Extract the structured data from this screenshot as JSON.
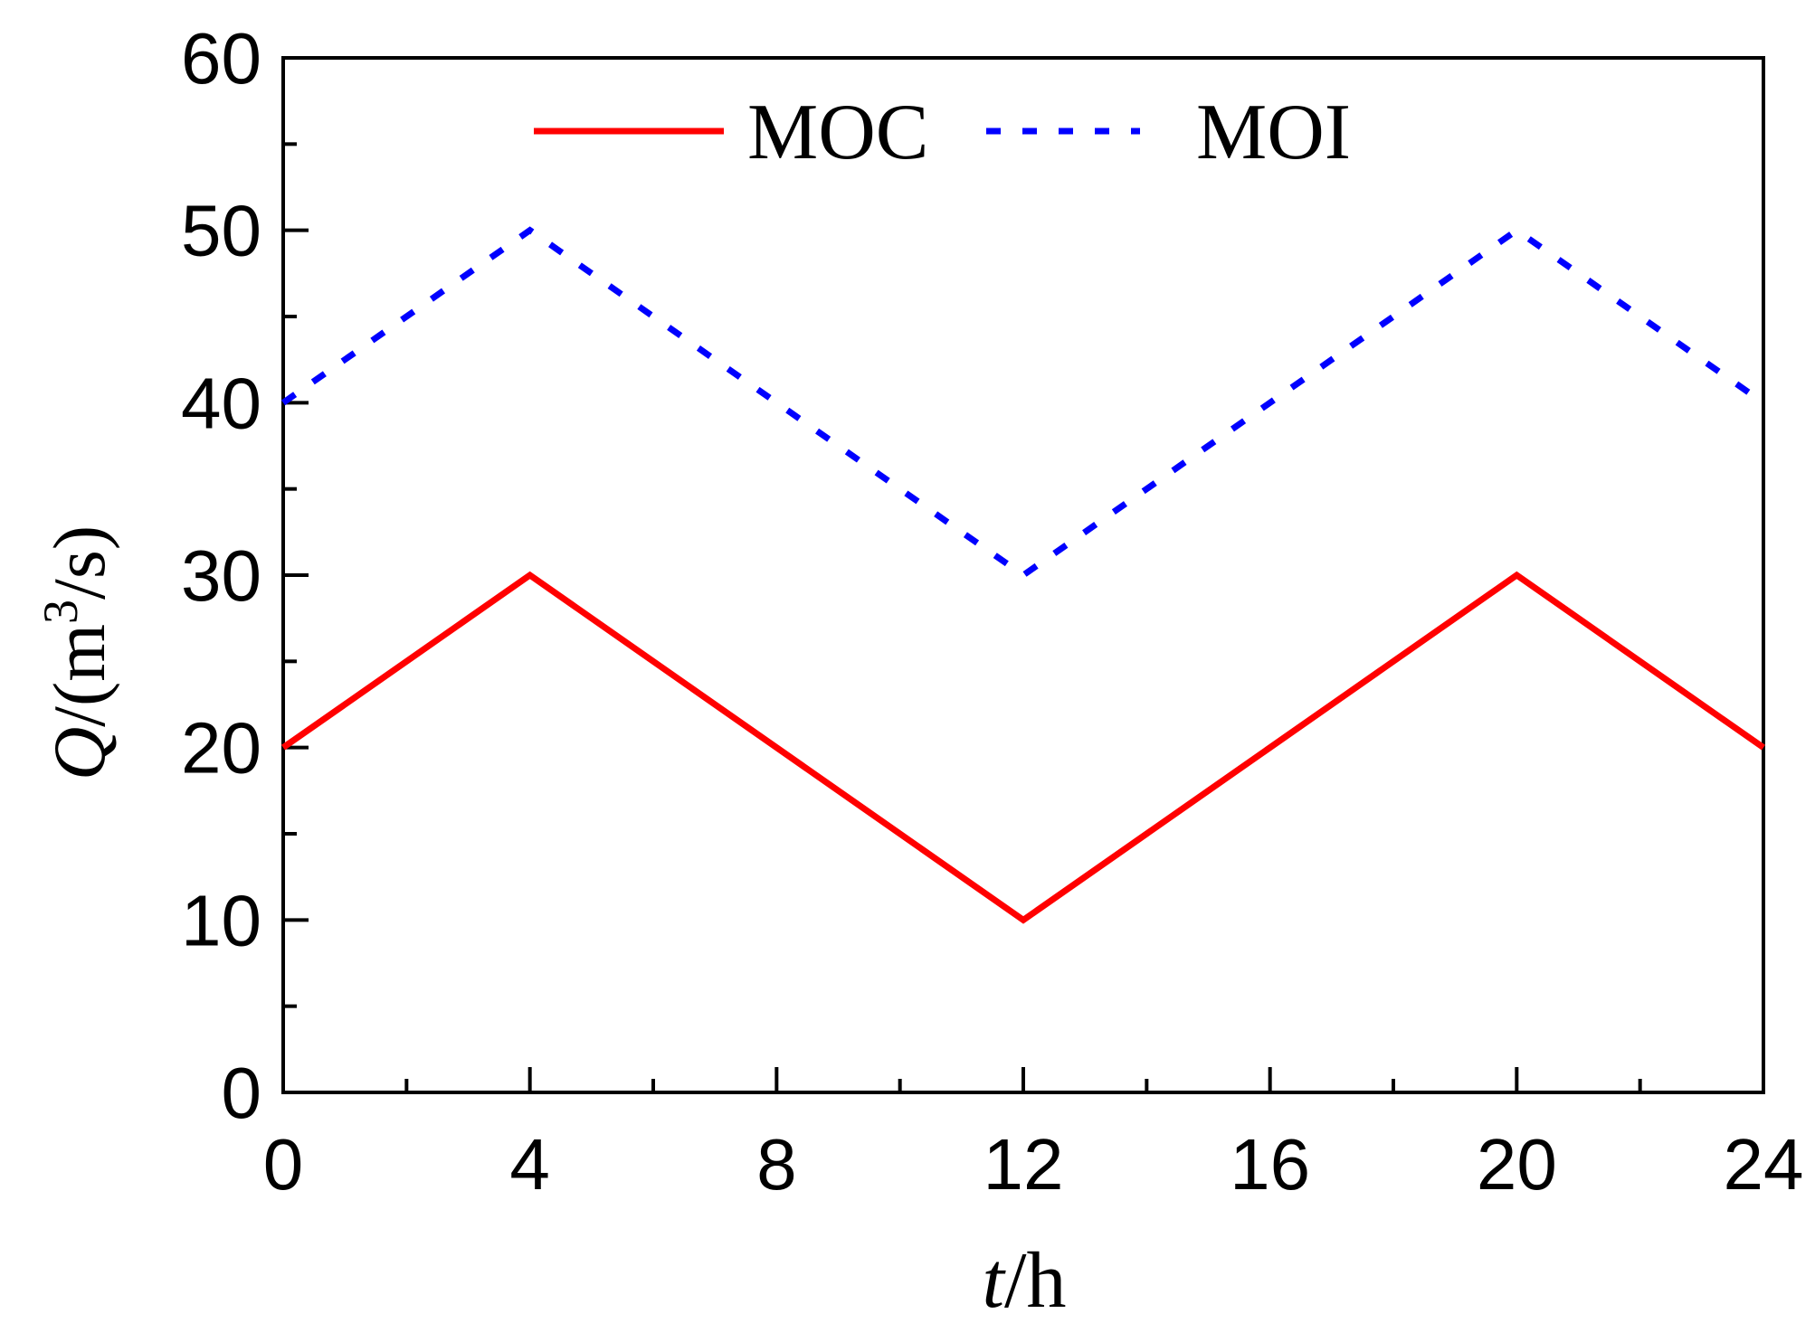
{
  "chart_data": {
    "type": "line",
    "title": "",
    "xlabel": {
      "italic": "t",
      "rest": "/h"
    },
    "ylabel": {
      "italic": "Q",
      "before_sup": "/(m",
      "sup": "3",
      "after_sup": "/s)"
    },
    "x": [
      0,
      4,
      12,
      20,
      24
    ],
    "xlim": [
      0,
      24
    ],
    "ylim": [
      0,
      60
    ],
    "x_major_ticks": [
      0,
      4,
      8,
      12,
      16,
      20,
      24
    ],
    "x_tick_labels": [
      "0",
      "4",
      "8",
      "12",
      "16",
      "20",
      "24"
    ],
    "x_minor_ticks": [
      2,
      6,
      10,
      14,
      18,
      22
    ],
    "y_major_ticks": [
      0,
      10,
      20,
      30,
      40,
      50,
      60
    ],
    "y_tick_labels": [
      "0",
      "10",
      "20",
      "30",
      "40",
      "50",
      "60"
    ],
    "y_minor_ticks": [
      5,
      15,
      25,
      35,
      45,
      55
    ],
    "grid": false,
    "legend_position": "top-center",
    "series": [
      {
        "name": "MOC",
        "values": [
          20,
          30,
          10,
          30,
          20
        ],
        "color": "#ff0000",
        "style": "solid"
      },
      {
        "name": "MOI",
        "values": [
          40,
          50,
          30,
          50,
          40
        ],
        "color": "#0000ff",
        "style": "dashed"
      }
    ]
  }
}
